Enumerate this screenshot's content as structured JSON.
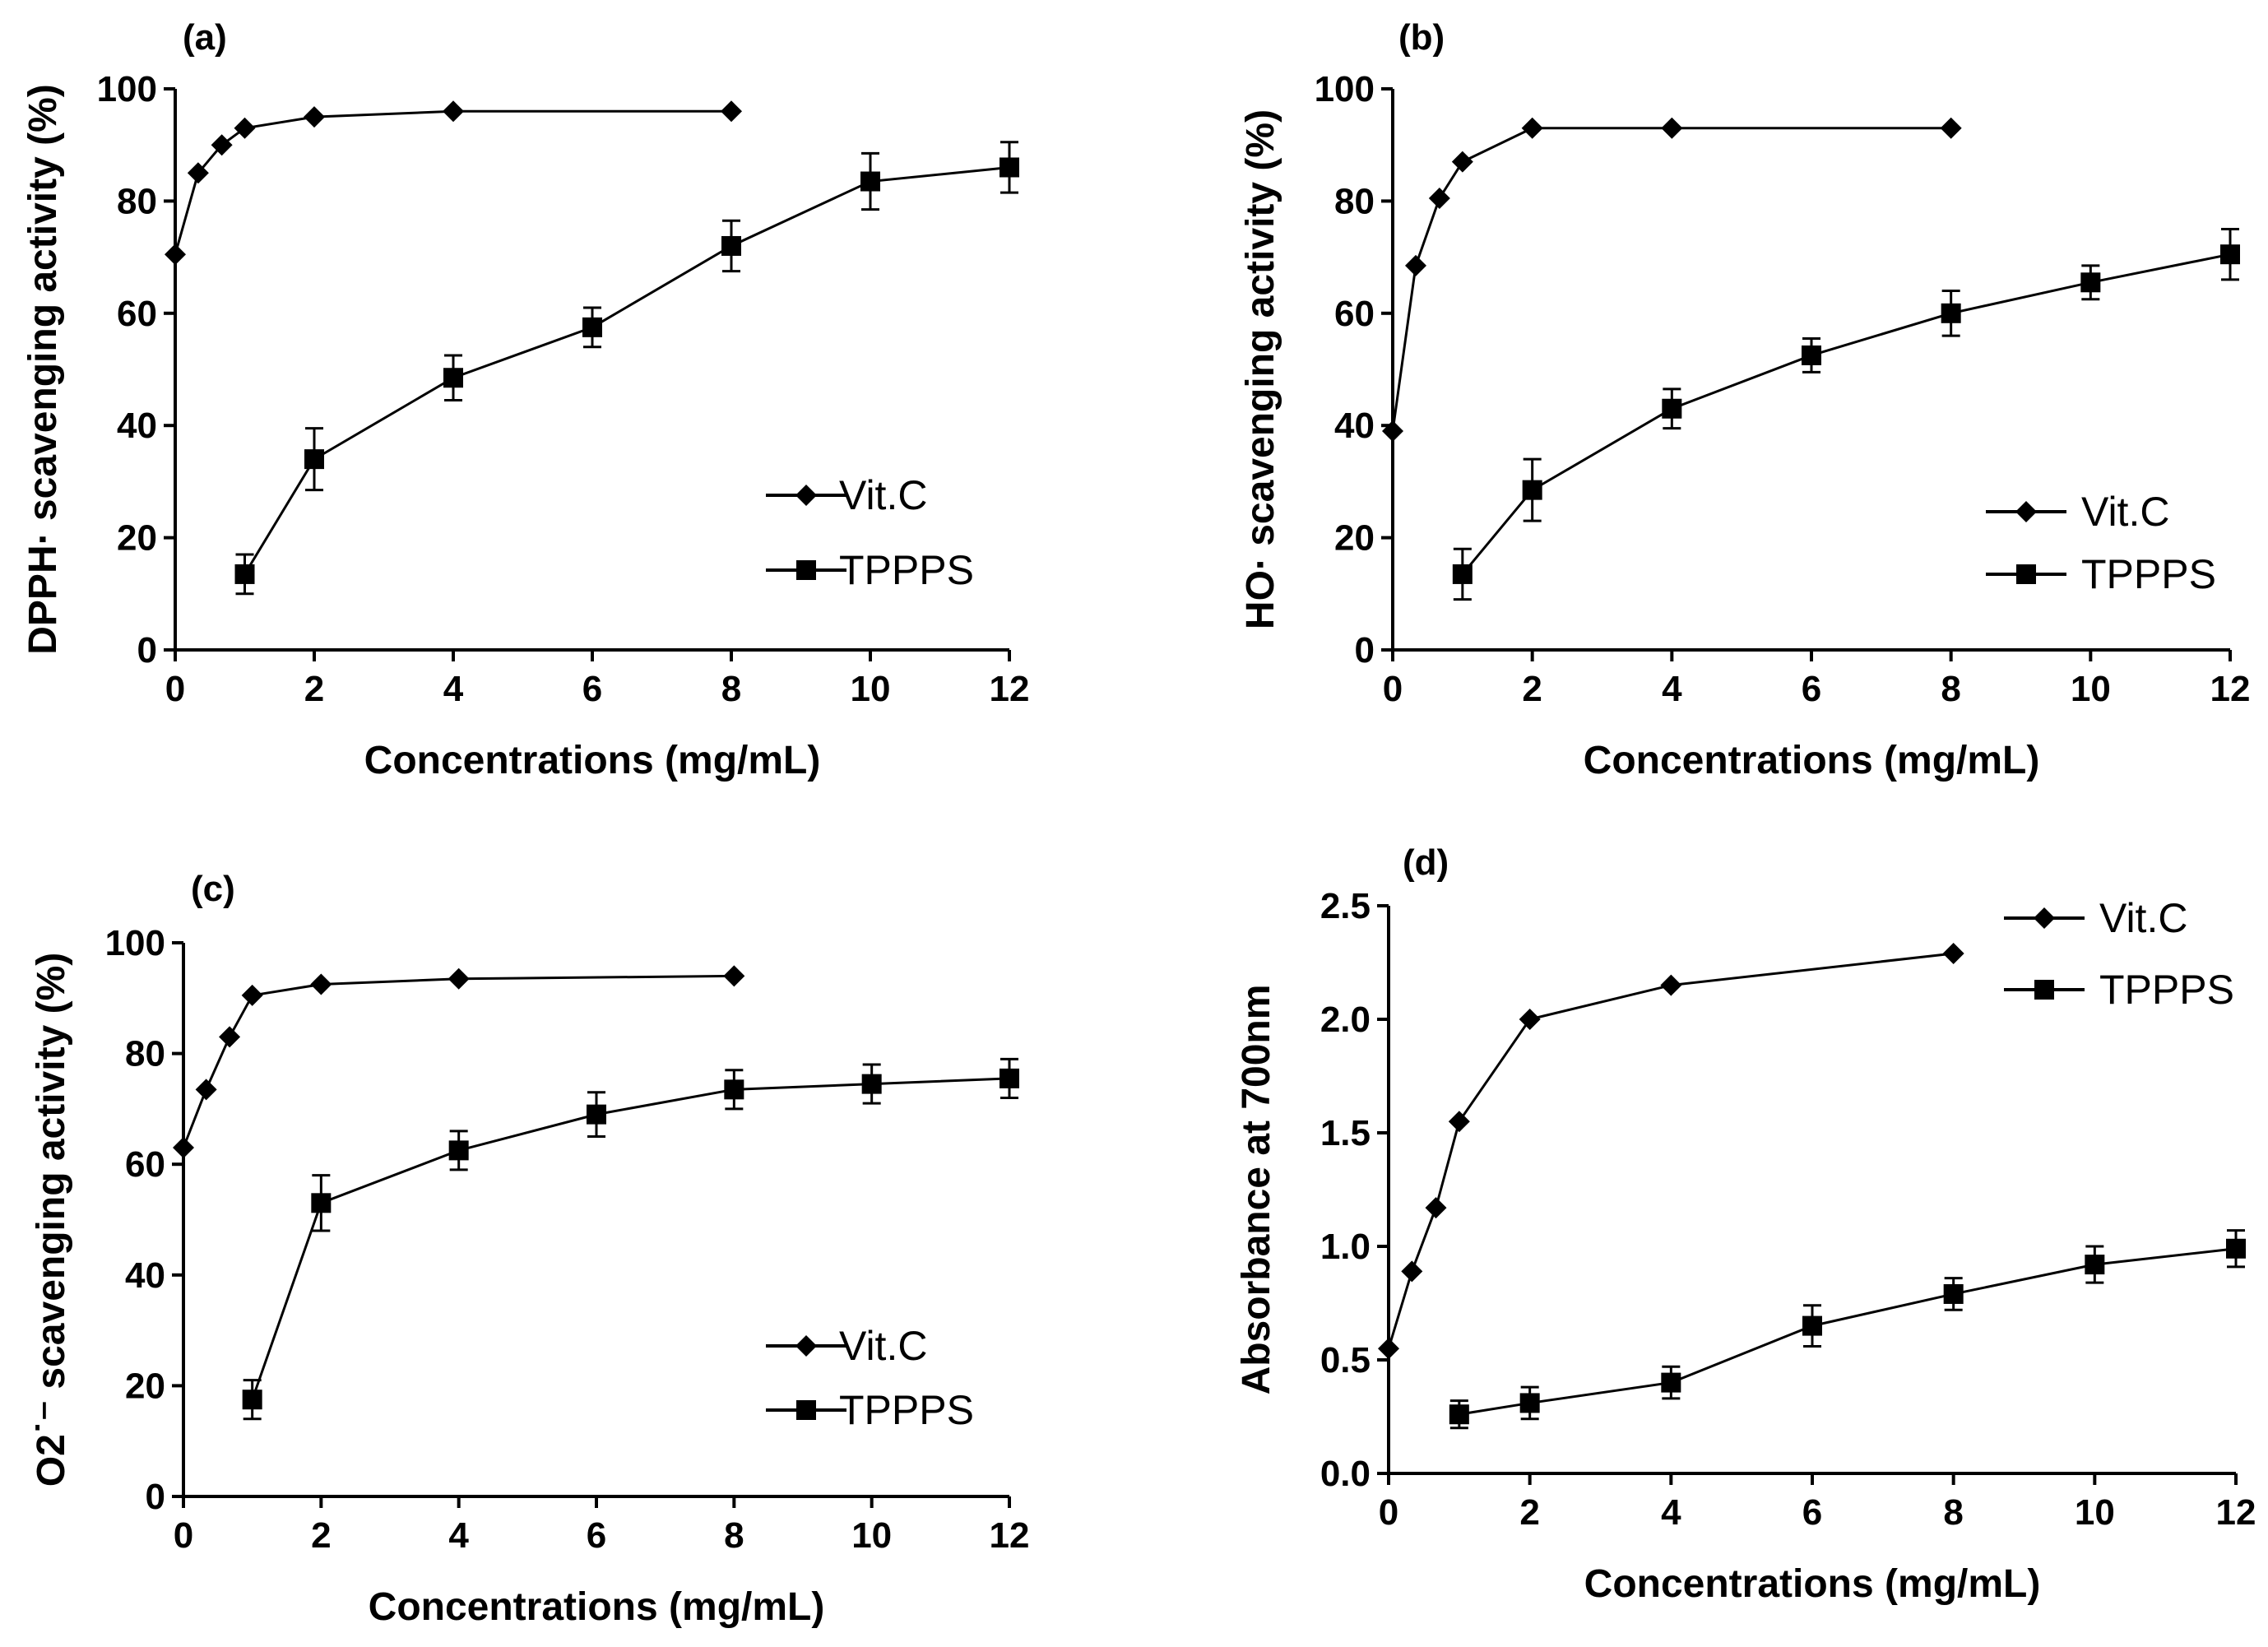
{
  "colors": {
    "line": "#000000",
    "background": "#ffffff"
  },
  "chart_data": [
    {
      "type": "line",
      "panel": "(a)",
      "xlabel": "Concentrations (mg/mL)",
      "ylabel": "DPPH· scavenging activity (%)",
      "xlim": [
        0,
        12
      ],
      "ylim": [
        0,
        100
      ],
      "xticks": [
        0,
        2,
        4,
        6,
        8,
        10,
        12
      ],
      "yticks": [
        0,
        20,
        40,
        60,
        80,
        100
      ],
      "legend_position": "bottom-right",
      "series": [
        {
          "name": "Vit.C",
          "marker": "diamond",
          "x": [
            0,
            0.33,
            0.67,
            1,
            2,
            4,
            8
          ],
          "y": [
            70.5,
            85,
            90,
            93,
            95,
            96,
            96
          ]
        },
        {
          "name": "TPPPS",
          "marker": "square",
          "x": [
            1,
            2,
            4,
            6,
            8,
            10,
            12
          ],
          "y": [
            13.5,
            34,
            48.5,
            57.5,
            72,
            83.5,
            86
          ],
          "err": [
            3.5,
            5.5,
            4,
            3.5,
            4.5,
            5,
            4.5
          ]
        }
      ]
    },
    {
      "type": "line",
      "panel": "(b)",
      "xlabel": "Concentrations (mg/mL)",
      "ylabel": "HO· scavenging activity (%)",
      "xlim": [
        0,
        12
      ],
      "ylim": [
        0,
        100
      ],
      "xticks": [
        0,
        2,
        4,
        6,
        8,
        10,
        12
      ],
      "yticks": [
        0,
        20,
        40,
        60,
        80,
        100
      ],
      "legend_position": "bottom-right",
      "series": [
        {
          "name": "Vit.C",
          "marker": "diamond",
          "x": [
            0,
            0.33,
            0.67,
            1,
            2,
            4,
            8
          ],
          "y": [
            39,
            68.5,
            80.5,
            87,
            93,
            93,
            93
          ]
        },
        {
          "name": "TPPPS",
          "marker": "square",
          "x": [
            1,
            2,
            4,
            6,
            8,
            10,
            12
          ],
          "y": [
            13.5,
            28.5,
            43,
            52.5,
            60,
            65.5,
            70.5
          ],
          "err": [
            4.5,
            5.5,
            3.5,
            3,
            4,
            3,
            4.5
          ]
        }
      ]
    },
    {
      "type": "line",
      "panel": "(c)",
      "xlabel": "Concentrations (mg/mL)",
      "ylabel": "O2˙⁻ scavenging activity (%)",
      "xlim": [
        0,
        12
      ],
      "ylim": [
        0,
        100
      ],
      "xticks": [
        0,
        2,
        4,
        6,
        8,
        10,
        12
      ],
      "yticks": [
        0,
        20,
        40,
        60,
        80,
        100
      ],
      "legend_position": "bottom-right",
      "series": [
        {
          "name": "Vit.C",
          "marker": "diamond",
          "x": [
            0,
            0.33,
            0.67,
            1,
            2,
            4,
            8
          ],
          "y": [
            63,
            73.5,
            83,
            90.5,
            92.5,
            93.5,
            94
          ]
        },
        {
          "name": "TPPPS",
          "marker": "square",
          "x": [
            1,
            2,
            4,
            6,
            8,
            10,
            12
          ],
          "y": [
            17.5,
            53,
            62.5,
            69,
            73.5,
            74.5,
            75.5
          ],
          "err": [
            3.5,
            5,
            3.5,
            4,
            3.5,
            3.5,
            3.5
          ]
        }
      ]
    },
    {
      "type": "line",
      "panel": "(d)",
      "xlabel": "Concentrations (mg/mL)",
      "ylabel": "Absorbance at 700nm",
      "xlim": [
        0,
        12
      ],
      "ylim": [
        0,
        2.5
      ],
      "xticks": [
        0,
        2,
        4,
        6,
        8,
        10,
        12
      ],
      "yticks": [
        0,
        0.5,
        1,
        1.5,
        2,
        2.5
      ],
      "ytick_labels": [
        "0.0",
        "0.5",
        "1.0",
        "1.5",
        "2.0",
        "2.5"
      ],
      "legend_position": "top-right",
      "series": [
        {
          "name": "Vit.C",
          "marker": "diamond",
          "x": [
            0,
            0.33,
            0.67,
            1,
            2,
            4,
            8
          ],
          "y": [
            0.55,
            0.89,
            1.17,
            1.55,
            2.0,
            2.15,
            2.29
          ]
        },
        {
          "name": "TPPPS",
          "marker": "square",
          "x": [
            1,
            2,
            4,
            6,
            8,
            10,
            12
          ],
          "y": [
            0.26,
            0.31,
            0.4,
            0.65,
            0.79,
            0.92,
            0.99
          ],
          "err": [
            0.06,
            0.07,
            0.07,
            0.09,
            0.07,
            0.08,
            0.08
          ]
        }
      ]
    }
  ]
}
